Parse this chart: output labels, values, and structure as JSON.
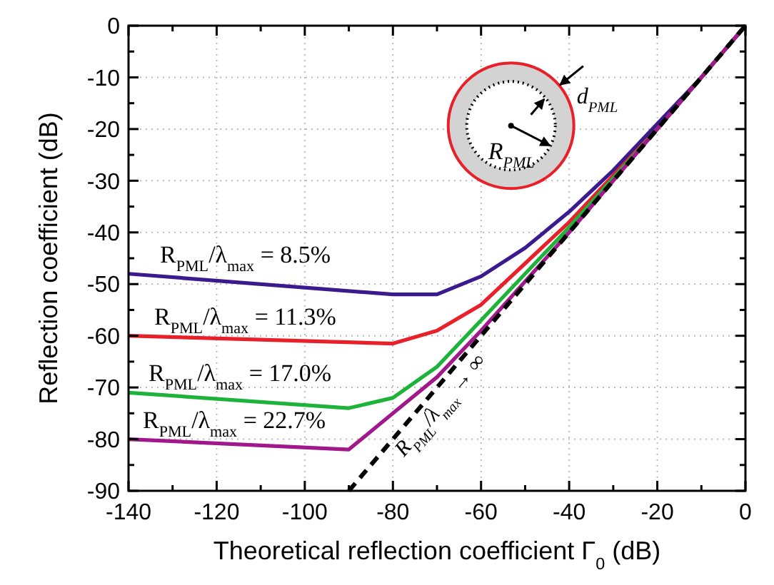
{
  "chart_data": {
    "type": "line",
    "xlabel": "Theoretical reflection coefficient Γ$_{0}$ (dB)",
    "ylabel": "Reflection coefficient (dB)",
    "xlim": [
      -140,
      0
    ],
    "ylim": [
      -90,
      0
    ],
    "xticks": [
      -140,
      {
        "value": -130,
        "label": null
      },
      -120,
      {
        "value": -110,
        "label": null
      },
      -100,
      {
        "value": -90,
        "label": null
      },
      -80,
      {
        "value": -70,
        "label": null
      },
      -60,
      {
        "value": -50,
        "label": null
      },
      -40,
      {
        "value": -30,
        "label": null
      },
      -20,
      {
        "value": -10,
        "label": null
      },
      0
    ],
    "yticks": [
      -90,
      {
        "value": -85,
        "label": null
      },
      -80,
      {
        "value": -75,
        "label": null
      },
      -70,
      {
        "value": -65,
        "label": null
      },
      -60,
      {
        "value": -55,
        "label": null
      },
      -50,
      {
        "value": -45,
        "label": null
      },
      -40,
      {
        "value": -35,
        "label": null
      },
      -30,
      {
        "value": -25,
        "label": null
      },
      -20,
      {
        "value": -15,
        "label": null
      },
      -10,
      {
        "value": -5,
        "label": null
      },
      0
    ],
    "grid": true,
    "marker": "none",
    "series": [
      {
        "name": "R$_{PML}$/λ$_{max}$ = 8.5%",
        "color": "#3a1a8c",
        "x": [
          -140,
          -80,
          -70,
          -60,
          -50,
          -40,
          -30,
          -20,
          -10,
          0
        ],
        "values": [
          -48,
          -52,
          -52,
          -48.5,
          -43,
          -36,
          -28,
          -19,
          -10,
          0
        ]
      },
      {
        "name": "R$_{PML}$/λ$_{max}$ = 11.3%",
        "color": "#e8202a",
        "x": [
          -140,
          -80,
          -70,
          -60,
          -50,
          -40,
          -30,
          -20,
          -10,
          0
        ],
        "values": [
          -60,
          -61.5,
          -59,
          -54,
          -46,
          -38,
          -29,
          -20,
          -10,
          0
        ]
      },
      {
        "name": "R$_{PML}$/λ$_{max}$ = 17.0%",
        "color": "#1db33a",
        "x": [
          -140,
          -90,
          -80,
          -70,
          -60,
          -50,
          -40,
          -30,
          -20,
          -10,
          0
        ],
        "values": [
          -71,
          -74,
          -72,
          -66,
          -57,
          -48,
          -39,
          -29.5,
          -20,
          -10,
          0
        ]
      },
      {
        "name": "R$_{PML}$/λ$_{max}$ = 22.7%",
        "color": "#a0188c",
        "x": [
          -140,
          -90,
          -80,
          -70,
          -60,
          -50,
          -40,
          -30,
          -20,
          -10,
          0
        ],
        "values": [
          -80,
          -82,
          -75,
          -68,
          -59,
          -49.5,
          -40,
          -30,
          -20,
          -10,
          0
        ]
      },
      {
        "name": "R$_{PML}$/λ$_{max}$ → ∞",
        "color": "#000000",
        "line_style": "dashed",
        "x": [
          -90,
          0
        ],
        "values": [
          -90,
          0
        ]
      }
    ],
    "annotations": [
      "d$_{PML}$",
      "R$_{PML}$"
    ]
  }
}
